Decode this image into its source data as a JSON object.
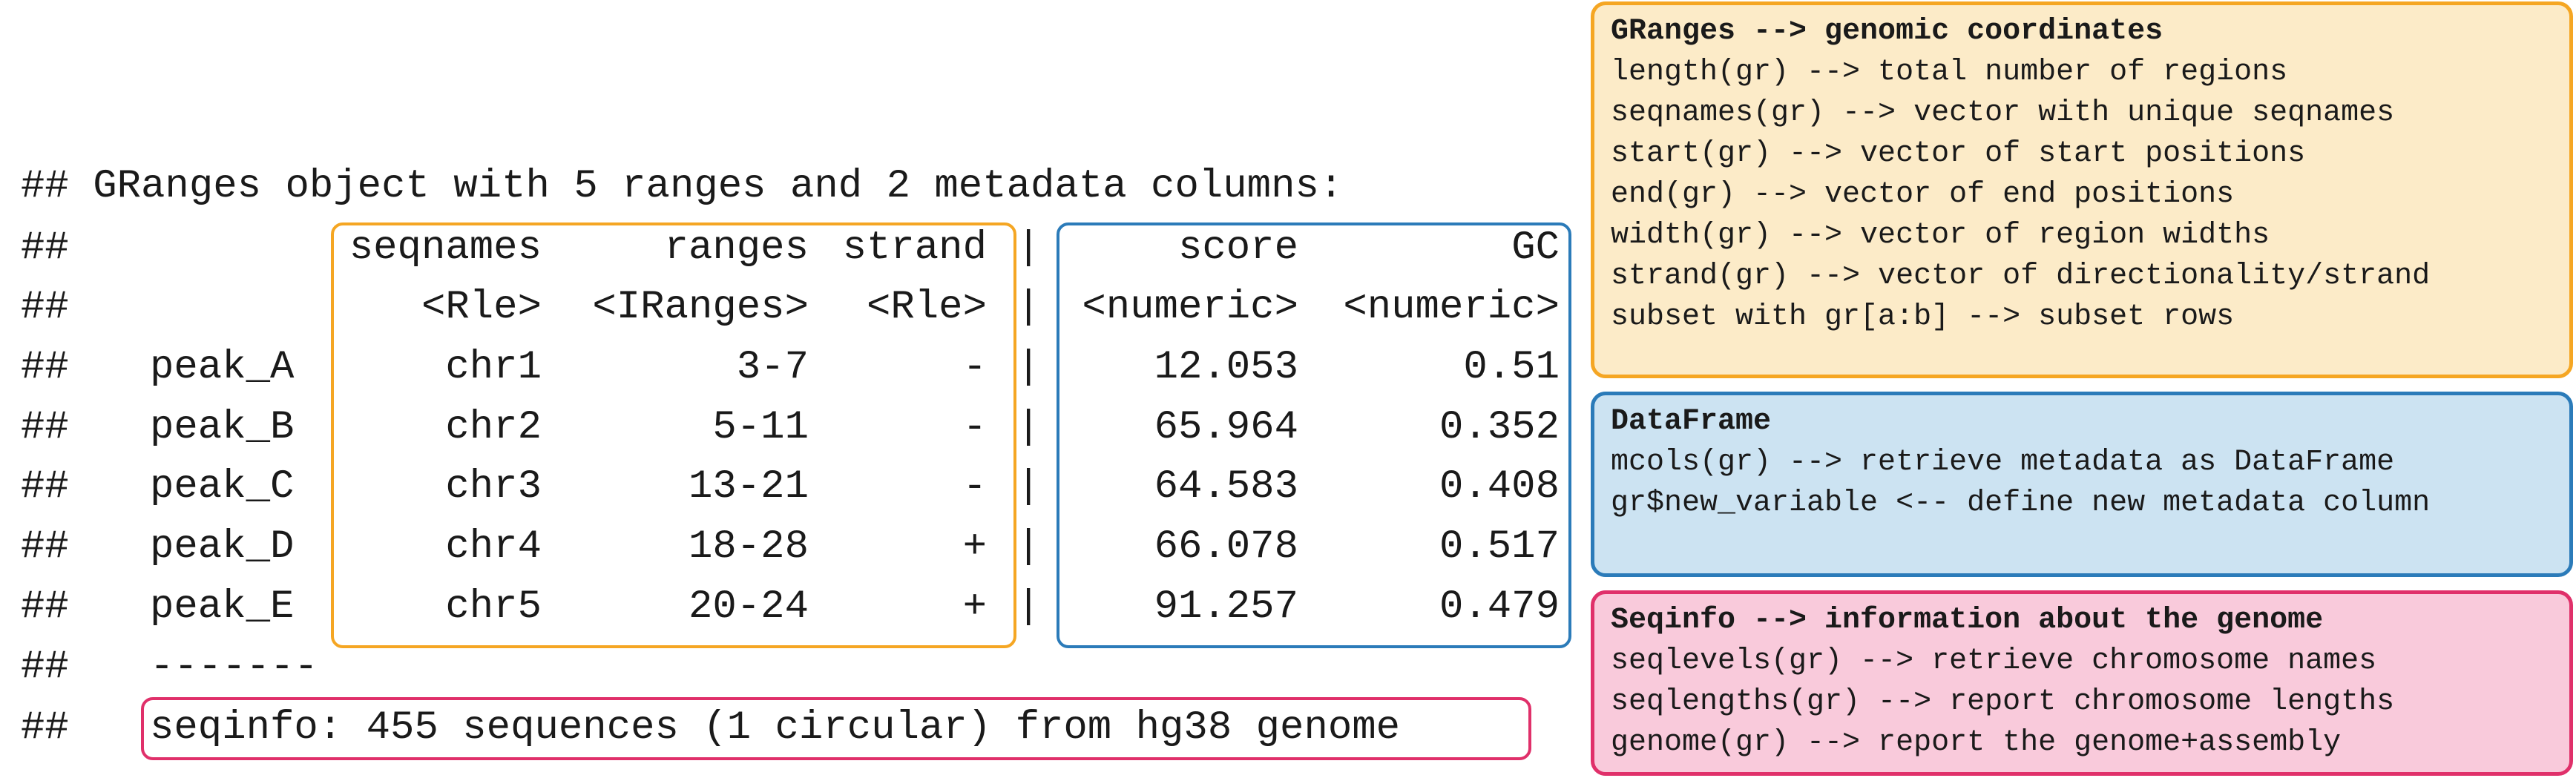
{
  "console": {
    "header": "## GRanges object with 5 ranges and 2 metadata columns:",
    "columns": [
      "seqnames",
      "ranges",
      "strand",
      "|",
      "score",
      "GC"
    ],
    "types": [
      "<Rle>",
      "<IRanges>",
      "<Rle>",
      "|",
      "<numeric>",
      "<numeric>"
    ],
    "rows": [
      {
        "name": "peak_A",
        "seqnames": "chr1",
        "ranges": "3-7",
        "strand": "-",
        "sep": "|",
        "score": "12.053",
        "gc": "0.51"
      },
      {
        "name": "peak_B",
        "seqnames": "chr2",
        "ranges": "5-11",
        "strand": "-",
        "sep": "|",
        "score": "65.964",
        "gc": "0.352"
      },
      {
        "name": "peak_C",
        "seqnames": "chr3",
        "ranges": "13-21",
        "strand": "-",
        "sep": "|",
        "score": "64.583",
        "gc": "0.408"
      },
      {
        "name": "peak_D",
        "seqnames": "chr4",
        "ranges": "18-28",
        "strand": "+",
        "sep": "|",
        "score": "66.078",
        "gc": "0.517"
      },
      {
        "name": "peak_E",
        "seqnames": "chr5",
        "ranges": "20-24",
        "strand": "+",
        "sep": "|",
        "score": "91.257",
        "gc": "0.479"
      }
    ],
    "prefix": "##",
    "divider": "-------",
    "seqinfo": "seqinfo: 455 sequences (1 circular) from hg38 genome"
  },
  "colors": {
    "granges": "#F5A623",
    "granges_bg": "#FCEBC8",
    "dataframe": "#2B7BB9",
    "dataframe_bg": "#CCE3F2",
    "seqinfo": "#E0306A",
    "seqinfo_bg": "#F9CADB"
  },
  "panels": {
    "granges": {
      "title": "GRanges --> genomic coordinates",
      "lines": [
        "length(gr) --> total number of regions",
        "seqnames(gr) --> vector with unique seqnames",
        "start(gr) --> vector of start positions",
        "end(gr) --> vector of end positions",
        "width(gr) --> vector of region widths",
        "strand(gr) --> vector of directionality/strand",
        "subset with gr[a:b] --> subset rows"
      ]
    },
    "dataframe": {
      "title": "DataFrame",
      "lines": [
        "mcols(gr) --> retrieve metadata as DataFrame",
        "gr$new_variable <-- define new metadata column"
      ]
    },
    "seqinfo": {
      "title": "Seqinfo --> information about the genome",
      "lines": [
        "seqlevels(gr) --> retrieve chromosome names",
        "seqlengths(gr) --> report chromosome lengths",
        "genome(gr) --> report the genome+assembly"
      ]
    }
  }
}
